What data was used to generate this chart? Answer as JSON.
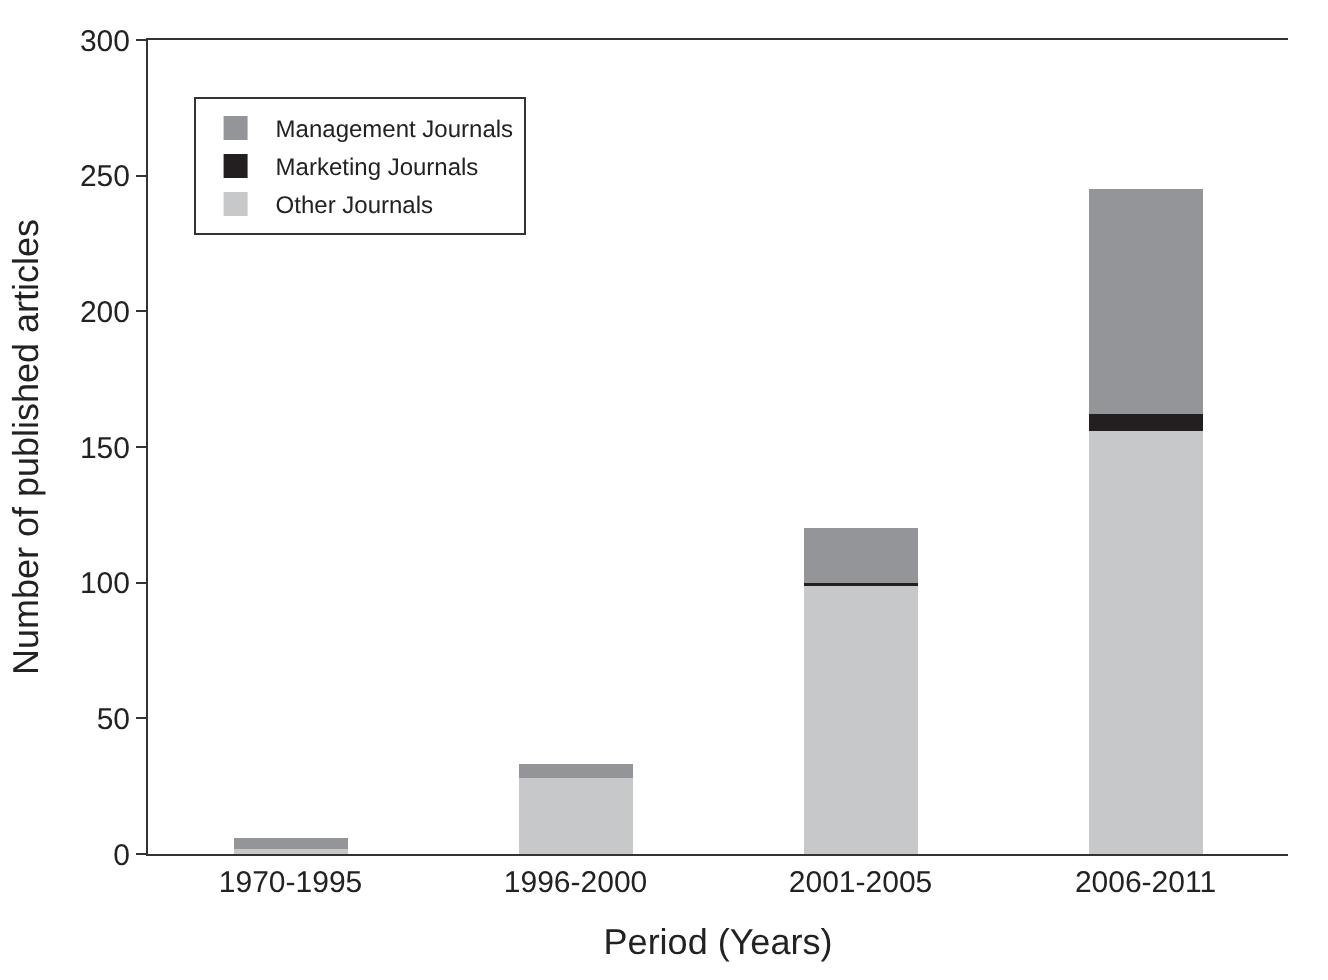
{
  "chart_data": {
    "type": "bar",
    "stacked": true,
    "xlabel": "Period (Years)",
    "ylabel": "Number of published articles",
    "categories": [
      "1970-1995",
      "1996-2000",
      "2001-2005",
      "2006-2011"
    ],
    "series": [
      {
        "name": "Other Journals",
        "color": "#c7c8ca",
        "values": [
          2,
          28,
          99,
          156
        ]
      },
      {
        "name": "Marketing Journals",
        "color": "#231f20",
        "values": [
          0,
          0,
          1,
          6
        ]
      },
      {
        "name": "Management Journals",
        "color": "#939598",
        "values": [
          4,
          5,
          20,
          83
        ]
      }
    ],
    "ylim": [
      0,
      300
    ],
    "yticks": [
      0,
      50,
      100,
      150,
      200,
      250,
      300
    ],
    "legend": "top left"
  }
}
